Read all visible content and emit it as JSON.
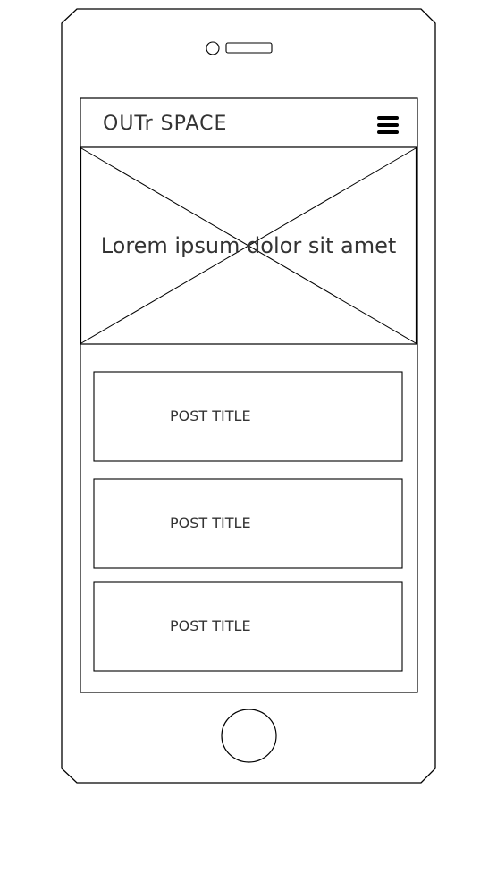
{
  "header": {
    "title": "OUTr SPACE",
    "menu_icon": "hamburger-menu-icon"
  },
  "hero": {
    "text": "Lorem ipsum dolor sit amet"
  },
  "posts": [
    {
      "title": "POST TITLE"
    },
    {
      "title": "POST TITLE"
    },
    {
      "title": "POST TITLE"
    }
  ],
  "colors": {
    "stroke": "#000000",
    "text": "#333333",
    "background": "#ffffff"
  }
}
